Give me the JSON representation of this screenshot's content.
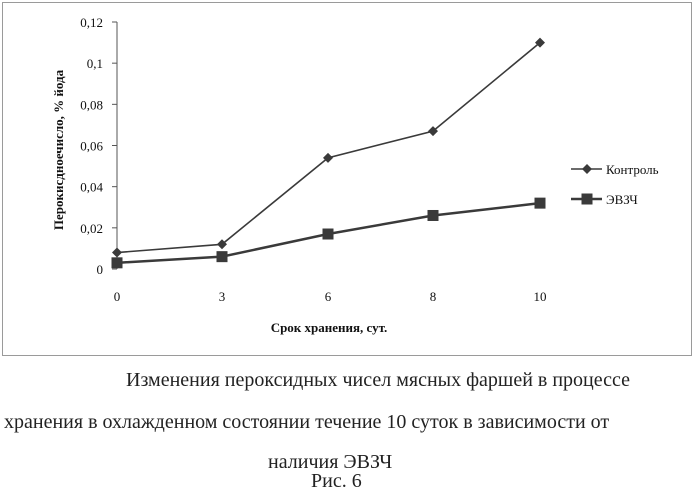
{
  "chart_data": {
    "type": "line",
    "categories": [
      "0",
      "3",
      "6",
      "8",
      "10"
    ],
    "series": [
      {
        "name": "Контроль",
        "values": [
          0.008,
          0.012,
          0.054,
          0.067,
          0.11
        ],
        "marker": "diamond",
        "color": "#3a3a3a"
      },
      {
        "name": "ЭВЗЧ",
        "values": [
          0.003,
          0.006,
          0.017,
          0.026,
          0.032
        ],
        "marker": "square",
        "color": "#3a3a3a"
      }
    ],
    "xlabel": "Срок хранения, сут.",
    "ylabel": "Перокисдноечисло, % йода",
    "ylim": [
      0,
      0.12
    ],
    "yticks": [
      "0",
      "0,02",
      "0,04",
      "0,06",
      "0,08",
      "0,1",
      "0,12"
    ],
    "grid": false,
    "legend_position": "right"
  },
  "caption": {
    "line1": "Изменения пероксидных чисел мясных фаршей в процессе",
    "line2": "хранения в охлажденном состоянии течение 10 суток в зависимости от",
    "line3": "наличия ЭВЗЧ",
    "figure_label": "Рис. 6"
  }
}
